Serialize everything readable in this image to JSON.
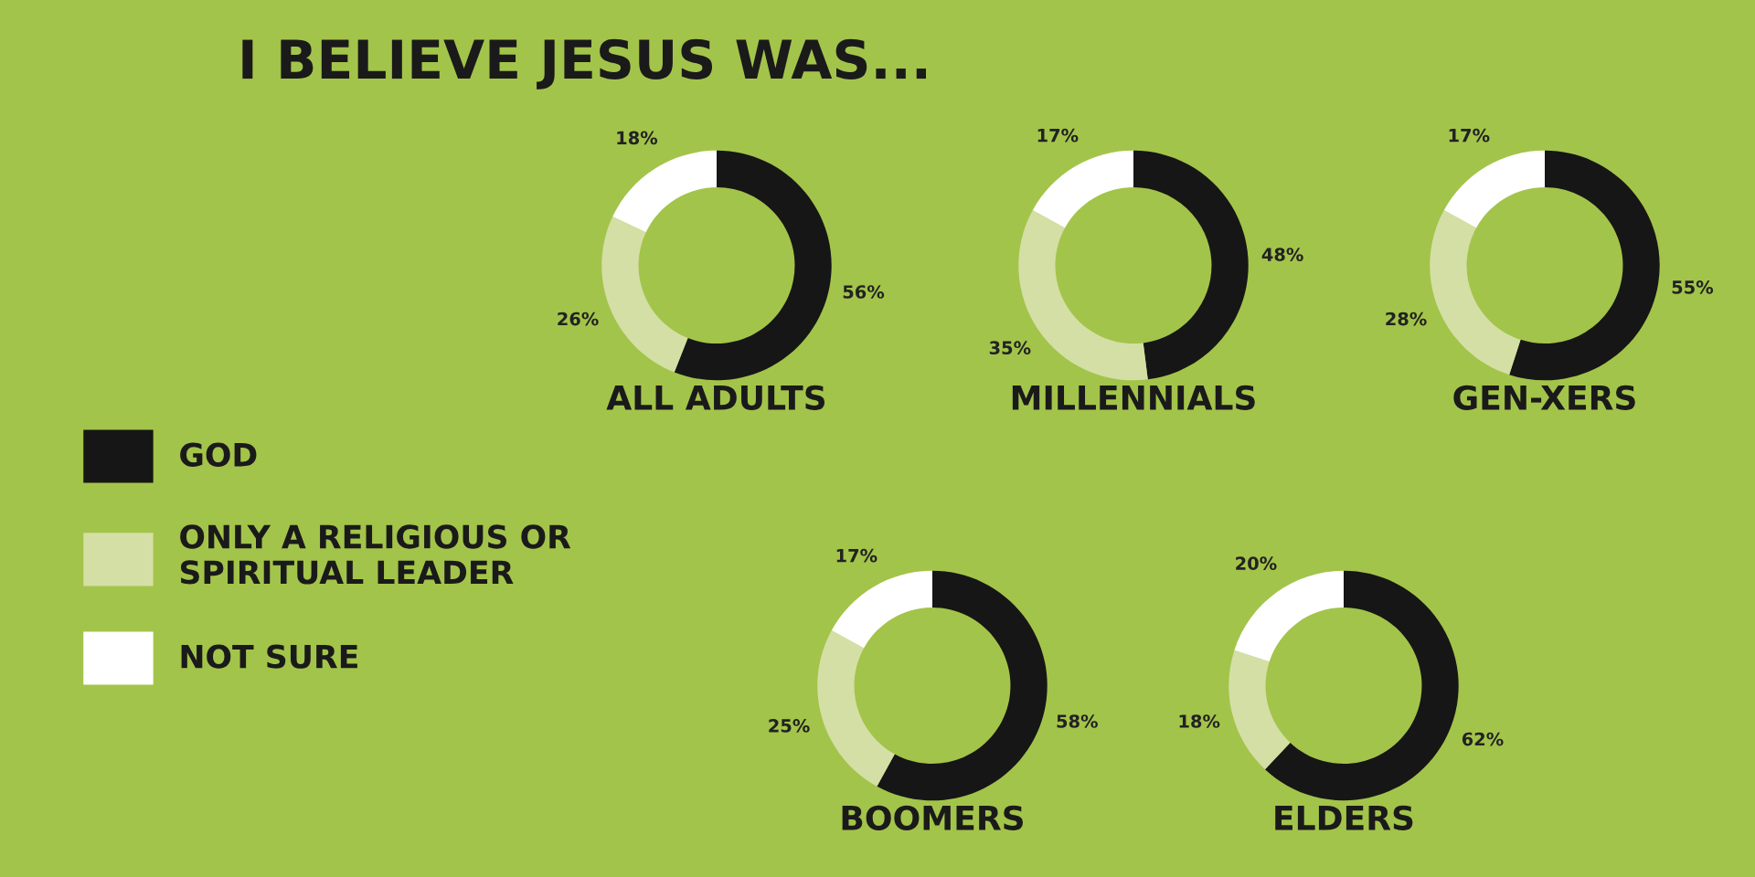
{
  "chart_data": [
    {
      "type": "donut",
      "title": "I BELIEVE JESUS WAS...",
      "xlabel": "ALL ADULTS",
      "categories": [
        "GOD",
        "ONLY A RELIGIOUS OR\nSPIRITUAL LEADER",
        "NOT SURE"
      ],
      "values": [
        56,
        26,
        18
      ],
      "value_labels": [
        "56%",
        "26%",
        "18%"
      ],
      "colors": [
        "#161616",
        "#d4dfa6",
        "#ffffff"
      ],
      "legend": "left"
    },
    {
      "type": "donut",
      "xlabel": "MILLENNIALS",
      "categories": [
        null,
        null,
        null
      ],
      "values": [
        48,
        35,
        17
      ],
      "value_labels": [
        "48%",
        "35%",
        "17%"
      ],
      "colors": [
        "#161616",
        "#d4dfa6",
        "#ffffff"
      ]
    },
    {
      "type": "donut",
      "xlabel": "GEN-XERS",
      "categories": [
        null,
        null,
        null
      ],
      "values": [
        55,
        28,
        17
      ],
      "value_labels": [
        "55%",
        "28%",
        "17%"
      ],
      "colors": [
        "#161616",
        "#d4dfa6",
        "#ffffff"
      ]
    },
    {
      "type": "donut",
      "xlabel": "BOOMERS",
      "categories": [
        null,
        null,
        null
      ],
      "values": [
        58,
        25,
        17
      ],
      "value_labels": [
        "58%",
        "25%",
        "17%"
      ],
      "colors": [
        "#161616",
        "#d4dfa6",
        "#ffffff"
      ]
    },
    {
      "type": "donut",
      "xlabel": "ELDERS",
      "categories": [
        null,
        null,
        null
      ],
      "values": [
        62,
        18,
        20
      ],
      "value_labels": [
        "62%",
        "18%",
        "20%"
      ],
      "colors": [
        "#161616",
        "#d4dfa6",
        "#ffffff"
      ]
    }
  ]
}
